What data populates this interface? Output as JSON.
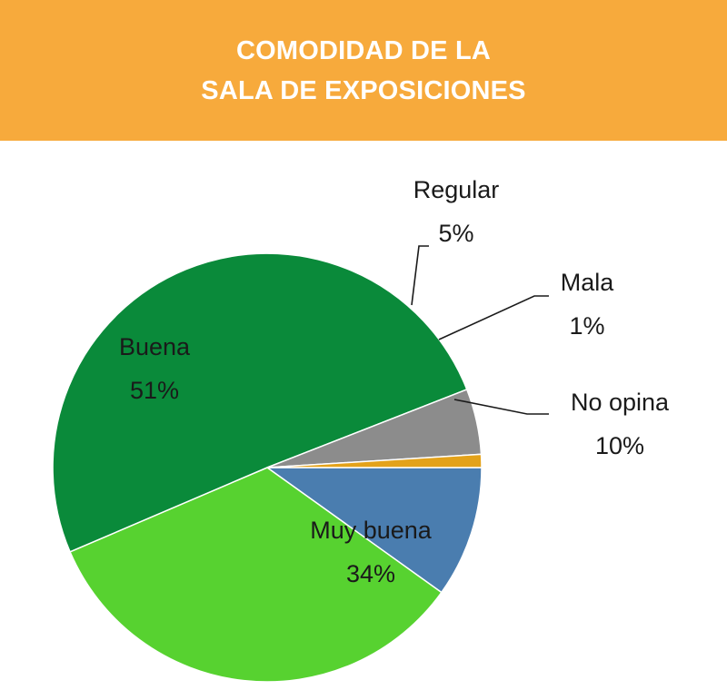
{
  "title_lines": [
    "COMODIDAD DE LA",
    "SALA DE EXPOSICIONES"
  ],
  "colors": {
    "banner": "#F7AA3C",
    "Buena": "#0A8A3A",
    "Muy buena": "#57D230",
    "No opina": "#4A7DAF",
    "Mala": "#E3A21A",
    "Regular": "#8C8C8C"
  },
  "chart_data": {
    "type": "pie",
    "title": "COMODIDAD DE LA SALA DE EXPOSICIONES",
    "slices": [
      {
        "label": "No opina",
        "value": 10,
        "text": "10%"
      },
      {
        "label": "Muy buena",
        "value": 34,
        "text": "34%"
      },
      {
        "label": "Buena",
        "value": 51,
        "text": "51%"
      },
      {
        "label": "Regular",
        "value": 5,
        "text": "5%"
      },
      {
        "label": "Mala",
        "value": 1,
        "text": "1%"
      }
    ]
  }
}
